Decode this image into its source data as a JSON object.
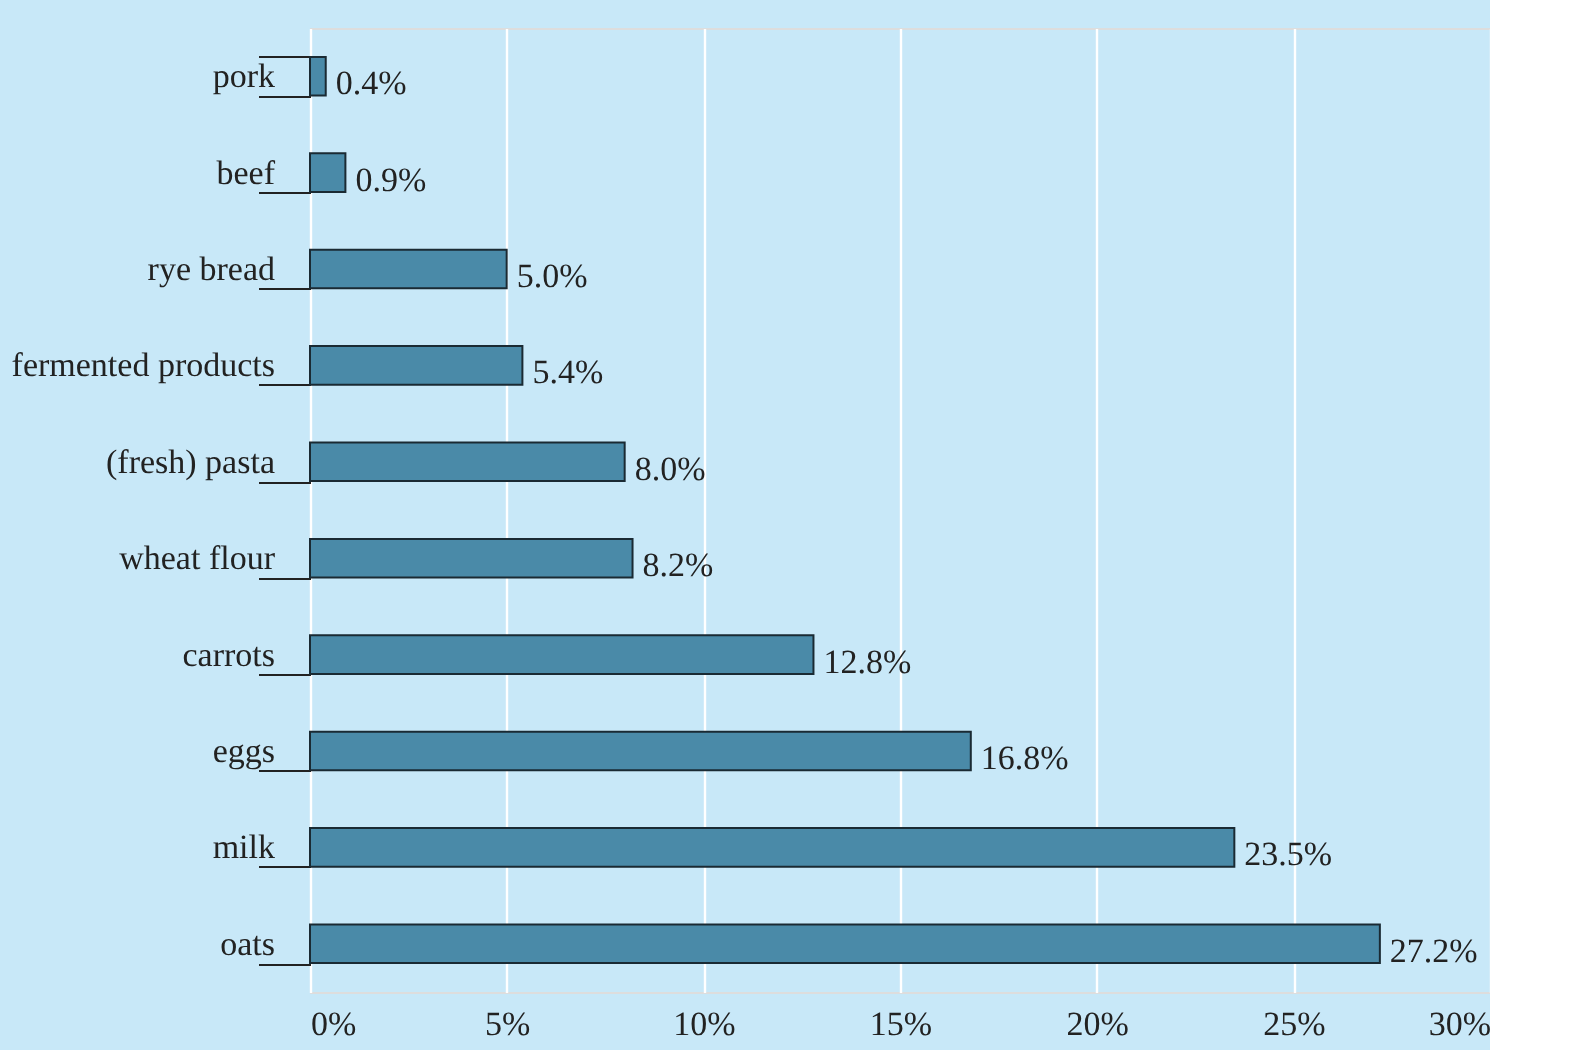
{
  "chart_data": {
    "type": "bar",
    "orientation": "horizontal",
    "categories": [
      "pork",
      "beef",
      "rye bread",
      "fermented products",
      "(fresh) pasta",
      "wheat flour",
      "carrots",
      "eggs",
      "milk",
      "oats"
    ],
    "values": [
      0.4,
      0.9,
      5.0,
      5.4,
      8.0,
      8.2,
      12.8,
      16.8,
      23.5,
      27.2
    ],
    "value_labels": [
      "0.4%",
      "0.9%",
      "5.0%",
      "5.4%",
      "8.0%",
      "8.2%",
      "12.8%",
      "16.8%",
      "23.5%",
      "27.2%"
    ],
    "color": "#4a8aa8",
    "xlim": [
      0,
      30
    ],
    "xticks": [
      {
        "value": 0,
        "label": "0%"
      },
      {
        "value": 5,
        "label": "5%"
      },
      {
        "value": 10,
        "label": "10%"
      },
      {
        "value": 15,
        "label": "15%"
      },
      {
        "value": 20,
        "label": "20%"
      },
      {
        "value": 25,
        "label": "25%"
      },
      {
        "value": 30,
        "label": "30%"
      }
    ],
    "grid": "x"
  }
}
